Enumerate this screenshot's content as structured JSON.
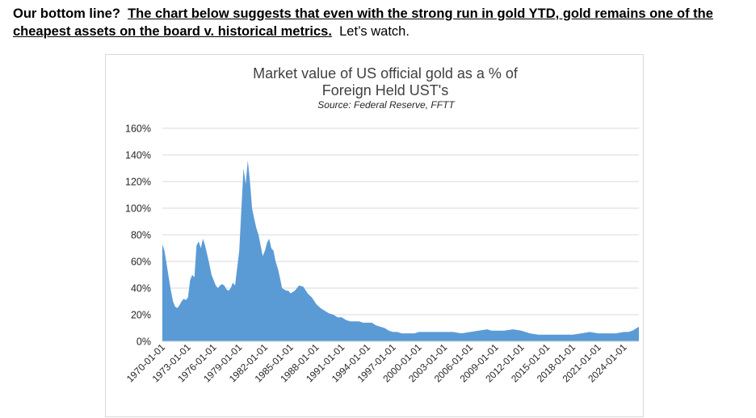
{
  "intro": {
    "lead": "Our bottom line?",
    "claim": "The chart below suggests that even with the strong run in gold YTD, gold remains one of the cheapest assets on the board v. historical metrics.",
    "tail": "Let’s watch."
  },
  "chart_data": {
    "type": "area",
    "title_line1": "Market value of US official gold as a % of",
    "title_line2": "Foreign Held UST's",
    "subtitle": "Source:  Federal Reserve, FFTT",
    "xlabel": "",
    "ylabel": "",
    "ylim": [
      0,
      160
    ],
    "yticks": [
      0,
      20,
      40,
      60,
      80,
      100,
      120,
      140,
      160
    ],
    "ytick_labels": [
      "0%",
      "20%",
      "40%",
      "60%",
      "80%",
      "100%",
      "120%",
      "140%",
      "160%"
    ],
    "xlim": [
      1970.0,
      2025.75
    ],
    "xticks": [
      1970,
      1973,
      1976,
      1979,
      1982,
      1985,
      1988,
      1991,
      1994,
      1997,
      2000,
      2003,
      2006,
      2009,
      2012,
      2015,
      2018,
      2021,
      2024
    ],
    "xtick_labels": [
      "1970-01-01",
      "1973-01-01",
      "1976-01-01",
      "1979-01-01",
      "1982-01-01",
      "1985-01-01",
      "1988-01-01",
      "1991-01-01",
      "1994-01-01",
      "1997-01-01",
      "2000-01-01",
      "2003-01-01",
      "2006-01-01",
      "2009-01-01",
      "2012-01-01",
      "2015-01-01",
      "2018-01-01",
      "2021-01-01",
      "2024-01-01"
    ],
    "grid": true,
    "fill_color": "#5b9bd5",
    "grid_color": "#d9d9d9",
    "series": [
      {
        "x": [
          1970.0,
          1970.25,
          1970.5,
          1970.75,
          1971.0,
          1971.25,
          1971.5,
          1971.75,
          1972.0,
          1972.25,
          1972.5,
          1972.75,
          1973.0,
          1973.25,
          1973.5,
          1973.75,
          1974.0,
          1974.25,
          1974.5,
          1974.75,
          1975.0,
          1975.25,
          1975.5,
          1975.75,
          1976.0,
          1976.25,
          1976.5,
          1976.75,
          1977.0,
          1977.25,
          1977.5,
          1977.75,
          1978.0,
          1978.25,
          1978.5,
          1978.75,
          1979.0,
          1979.25,
          1979.5,
          1979.75,
          1980.0,
          1980.25,
          1980.5,
          1980.75,
          1981.0,
          1981.25,
          1981.5,
          1981.75,
          1982.0,
          1982.25,
          1982.5,
          1982.75,
          1983.0,
          1983.25,
          1983.5,
          1983.75,
          1984.0,
          1984.25,
          1984.5,
          1984.75,
          1985.0,
          1985.5,
          1986.0,
          1986.5,
          1987.0,
          1987.5,
          1988.0,
          1988.5,
          1989.0,
          1989.5,
          1990.0,
          1990.5,
          1991.0,
          1991.5,
          1992.0,
          1992.5,
          1993.0,
          1993.5,
          1994.0,
          1994.5,
          1995.0,
          1995.5,
          1996.0,
          1996.5,
          1997.0,
          1997.5,
          1998.0,
          1998.5,
          1999.0,
          1999.5,
          2000.0,
          2001.0,
          2002.0,
          2003.0,
          2004.0,
          2005.0,
          2006.0,
          2007.0,
          2008.0,
          2008.5,
          2009.0,
          2010.0,
          2011.0,
          2012.0,
          2013.0,
          2014.0,
          2015.0,
          2016.0,
          2017.0,
          2018.0,
          2019.0,
          2020.0,
          2021.0,
          2022.0,
          2023.0,
          2024.0,
          2024.5,
          2025.0,
          2025.5,
          2025.75
        ],
        "values": [
          73,
          68,
          58,
          48,
          38,
          30,
          26,
          25,
          27,
          30,
          32,
          31,
          33,
          46,
          50,
          48,
          72,
          75,
          70,
          77,
          72,
          65,
          58,
          50,
          46,
          42,
          40,
          42,
          43,
          42,
          39,
          38,
          40,
          44,
          42,
          55,
          68,
          100,
          130,
          118,
          136,
          120,
          100,
          92,
          85,
          80,
          72,
          64,
          68,
          74,
          77,
          70,
          68,
          60,
          55,
          48,
          40,
          39,
          38,
          38,
          36,
          38,
          42,
          41,
          36,
          33,
          28,
          25,
          23,
          21,
          20,
          18,
          18,
          16,
          15,
          15,
          15,
          14,
          14,
          14,
          12,
          11,
          10,
          8,
          7,
          7,
          6,
          6,
          6,
          6,
          7,
          7,
          7,
          7,
          7,
          6,
          7,
          8,
          9,
          8,
          8,
          8,
          9,
          8,
          6,
          5,
          5,
          5,
          5,
          5,
          6,
          7,
          6,
          6,
          6,
          7,
          7,
          8,
          10,
          11
        ]
      }
    ]
  }
}
